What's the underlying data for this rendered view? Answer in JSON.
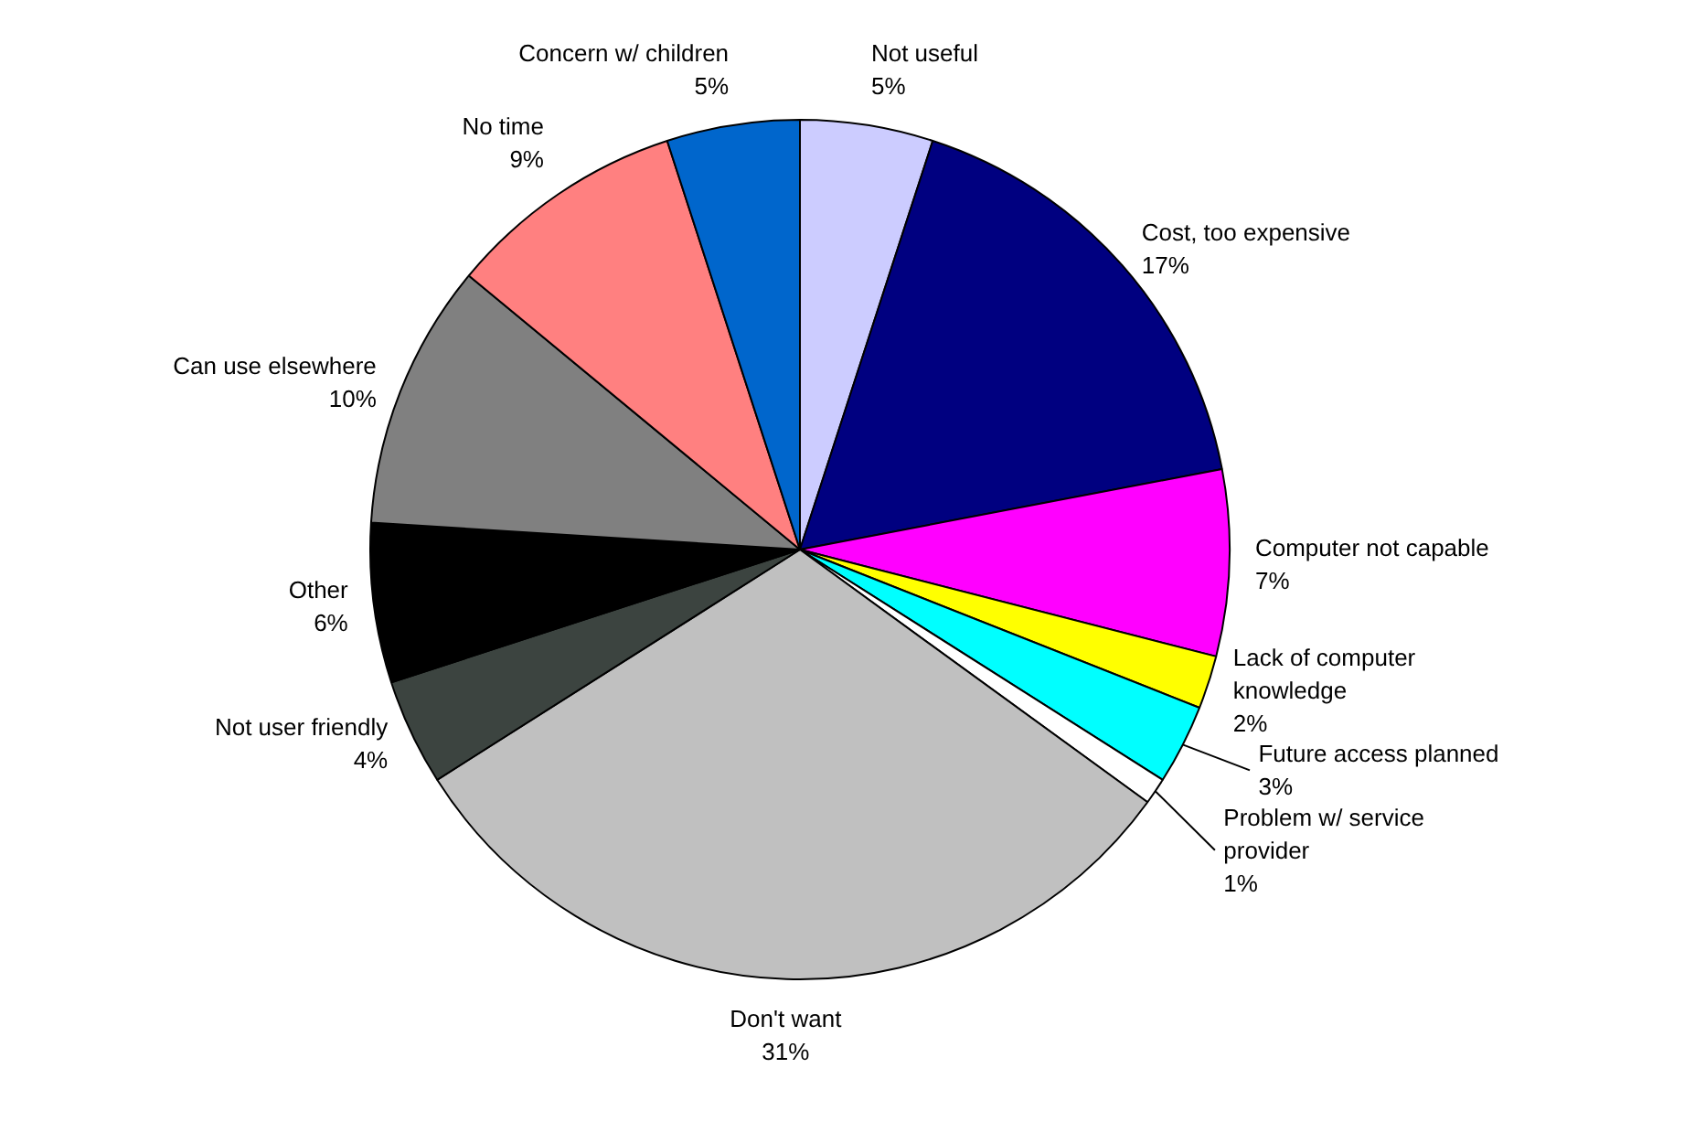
{
  "chart_data": {
    "type": "pie",
    "categories": [
      "Not useful",
      "Cost, too expensive",
      "Computer not capable",
      "Lack of computer knowledge",
      "Future access planned",
      "Problem w/ service provider",
      "Don't want",
      "Not user friendly",
      "Other",
      "Can use elsewhere",
      "No time",
      "Concern w/ children"
    ],
    "values": [
      5,
      17,
      7,
      2,
      3,
      1,
      31,
      4,
      6,
      10,
      9,
      5
    ],
    "value_labels": [
      "5%",
      "17%",
      "7%",
      "2%",
      "3%",
      "1%",
      "31%",
      "4%",
      "6%",
      "10%",
      "9%",
      "5%"
    ],
    "colors": [
      "#ccccff",
      "#000080",
      "#ff00ff",
      "#ffff00",
      "#00ffff",
      "#ffffff",
      "#c0c0c0",
      "#3c4440",
      "#000000",
      "#808080",
      "#ff8080",
      "#0066cc"
    ]
  }
}
